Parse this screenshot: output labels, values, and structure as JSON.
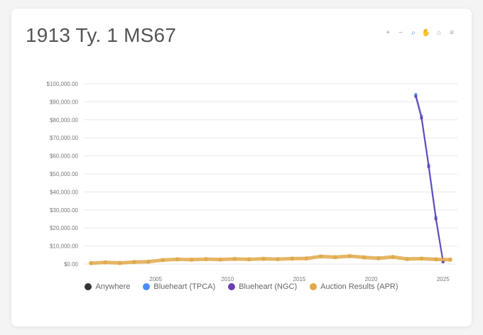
{
  "title": "1913 Ty. 1 MS67",
  "toolbar": {
    "icons": [
      "zoom-in-icon",
      "zoom-out-icon",
      "magnifier-icon",
      "hand-pan-icon",
      "home-icon",
      "menu-icon"
    ],
    "glyphs": [
      "+",
      "−",
      "⌕",
      "✋",
      "⌂",
      "≡"
    ]
  },
  "colors": {
    "series": [
      "#333333",
      "#4b8df8",
      "#6a3fb0",
      "#e0a94a"
    ]
  },
  "chart_data": {
    "type": "line",
    "ylim": [
      0,
      100000
    ],
    "xlim": [
      2000,
      2026
    ],
    "yticks": [
      0,
      10000,
      20000,
      30000,
      40000,
      50000,
      60000,
      70000,
      80000,
      90000,
      100000
    ],
    "ytick_labels": [
      "$0.00",
      "$10,000.00",
      "$20,000.00",
      "$30,000.00",
      "$40,000.00",
      "$50,000.00",
      "$60,000.00",
      "$70,000.00",
      "$80,000.00",
      "$90,000.00",
      "$100,000.00"
    ],
    "xticks": [
      2005,
      2010,
      2015,
      2020,
      2025
    ],
    "xtick_labels": [
      "2005",
      "2010",
      "2015",
      "2020",
      "2025"
    ],
    "grid": true,
    "legend_position": "bottom",
    "series": [
      {
        "name": "Anywhere",
        "x": [],
        "y": []
      },
      {
        "name": "Blueheart (TPCA)",
        "x": [
          2023.1,
          2023.5,
          2024.0,
          2024.5,
          2025.0
        ],
        "y": [
          94000,
          82000,
          55000,
          26000,
          1500
        ]
      },
      {
        "name": "Blueheart (NGC)",
        "x": [
          2023.1,
          2023.5,
          2024.0,
          2024.5,
          2025.0
        ],
        "y": [
          93000,
          81000,
          54000,
          25000,
          1200
        ]
      },
      {
        "name": "Auction Results (APR)",
        "x": [
          2000.5,
          2001.5,
          2002.5,
          2003.5,
          2004.5,
          2005.5,
          2006.5,
          2007.5,
          2008.5,
          2009.5,
          2010.5,
          2011.5,
          2012.5,
          2013.5,
          2014.5,
          2015.5,
          2016.5,
          2017.5,
          2018.5,
          2019.5,
          2020.5,
          2021.5,
          2022.5,
          2023.5,
          2024.5,
          2025.5
        ],
        "y": [
          500,
          900,
          600,
          1100,
          1300,
          2200,
          2600,
          2400,
          2700,
          2500,
          2800,
          2600,
          2900,
          2700,
          3000,
          3100,
          4200,
          3800,
          4400,
          3700,
          3200,
          3900,
          2800,
          3000,
          2600,
          2400
        ]
      }
    ]
  }
}
